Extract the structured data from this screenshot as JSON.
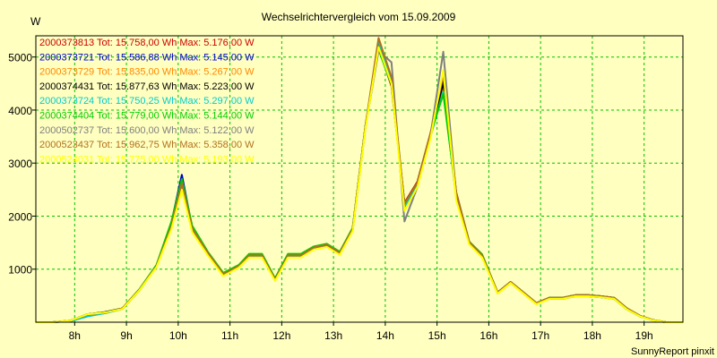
{
  "chart_data": {
    "type": "line",
    "title": "Wechselrichtervergleich vom 15.09.2009",
    "ylabel": "W",
    "xlabel": "",
    "footer": "SunnyReport pinxit",
    "ylim": [
      0,
      5400
    ],
    "xlim": [
      7.25,
      19.75
    ],
    "y_ticks": [
      1000,
      2000,
      3000,
      4000,
      5000
    ],
    "x_ticks": [
      {
        "value": 8,
        "label": "8h"
      },
      {
        "value": 9,
        "label": "9h"
      },
      {
        "value": 10,
        "label": "10h"
      },
      {
        "value": 11,
        "label": "11h"
      },
      {
        "value": 12,
        "label": "12h"
      },
      {
        "value": 13,
        "label": "13h"
      },
      {
        "value": 14,
        "label": "14h"
      },
      {
        "value": 15,
        "label": "15h"
      },
      {
        "value": 16,
        "label": "16h"
      },
      {
        "value": 17,
        "label": "17h"
      },
      {
        "value": 18,
        "label": "18h"
      },
      {
        "value": 19,
        "label": "19h"
      }
    ],
    "grid": true,
    "x": [
      7.25,
      7.58,
      7.92,
      8.25,
      8.58,
      8.92,
      9.25,
      9.58,
      9.87,
      10.07,
      10.27,
      10.57,
      10.87,
      11.17,
      11.37,
      11.62,
      11.87,
      12.12,
      12.37,
      12.62,
      12.87,
      13.12,
      13.37,
      13.62,
      13.87,
      14.12,
      14.37,
      14.62,
      14.87,
      15.12,
      15.37,
      15.62,
      15.87,
      16.17,
      16.42,
      16.67,
      16.92,
      17.17,
      17.42,
      17.67,
      17.92,
      18.17,
      18.42,
      18.67,
      18.92,
      19.17,
      19.42,
      19.75
    ],
    "base_curve": [
      0,
      0,
      30,
      150,
      180,
      250,
      600,
      1050,
      1800,
      2600,
      1750,
      1300,
      900,
      1050,
      1250,
      1250,
      800,
      1250,
      1250,
      1400,
      1450,
      1300,
      1750,
      3700,
      5300,
      4600,
      2200,
      2600,
      3500,
      4500,
      2400,
      1500,
      1250,
      550,
      750,
      550,
      350,
      450,
      450,
      500,
      500,
      480,
      450,
      250,
      120,
      40,
      0,
      0
    ],
    "series": [
      {
        "name": "2000373813",
        "text": "2000373813 Tot: 15.758,00 Wh Max: 5.176,00 W",
        "total_wh": 15758.0,
        "max_w": 5176.0,
        "color": "#cc0000",
        "values": [
          0,
          0,
          30,
          150,
          180,
          260,
          620,
          1070,
          1850,
          2700,
          1800,
          1320,
          920,
          1070,
          1280,
          1270,
          820,
          1270,
          1270,
          1420,
          1470,
          1320,
          1770,
          3720,
          5180,
          4450,
          2250,
          2650,
          3550,
          4600,
          2450,
          1520,
          1270,
          560,
          760,
          560,
          360,
          460,
          460,
          510,
          510,
          490,
          460,
          260,
          120,
          40,
          0,
          0
        ]
      },
      {
        "name": "2000373721",
        "text": "2000373721 Tot: 15.586,88 Wh Max: 5.145,00 W",
        "total_wh": 15586.88,
        "max_w": 5145.0,
        "color": "#0000cc",
        "values": [
          0,
          0,
          20,
          120,
          170,
          250,
          600,
          1060,
          1880,
          2780,
          1780,
          1300,
          900,
          1050,
          1250,
          1250,
          800,
          1250,
          1250,
          1400,
          1450,
          1300,
          1750,
          3700,
          5150,
          4500,
          2200,
          2600,
          3500,
          4450,
          2400,
          1500,
          1250,
          550,
          750,
          550,
          350,
          440,
          440,
          490,
          490,
          470,
          440,
          240,
          110,
          35,
          0,
          0
        ]
      },
      {
        "name": "2000373729",
        "text": "2000373729 Tot: 15.835,00 Wh Max: 5.267,00 W",
        "total_wh": 15835.0,
        "max_w": 5267.0,
        "color": "#ff8800",
        "values": [
          0,
          0,
          30,
          150,
          180,
          250,
          600,
          1050,
          1780,
          2550,
          1720,
          1280,
          880,
          1040,
          1230,
          1230,
          790,
          1230,
          1230,
          1380,
          1430,
          1280,
          1730,
          3680,
          5270,
          4580,
          2150,
          2580,
          3480,
          4400,
          2350,
          1480,
          1230,
          540,
          740,
          540,
          340,
          450,
          450,
          500,
          500,
          480,
          450,
          250,
          120,
          40,
          0,
          0
        ]
      },
      {
        "name": "2000374431",
        "text": "2000374431 Tot: 15.877,63 Wh Max: 5.223,00 W",
        "total_wh": 15877.63,
        "max_w": 5223.0,
        "color": "#000000",
        "values": [
          0,
          0,
          30,
          150,
          190,
          260,
          610,
          1060,
          1810,
          2620,
          1760,
          1310,
          910,
          1060,
          1260,
          1260,
          810,
          1260,
          1260,
          1410,
          1460,
          1310,
          1760,
          3710,
          5220,
          4520,
          2220,
          2620,
          3520,
          4520,
          2420,
          1510,
          1260,
          560,
          760,
          560,
          360,
          460,
          460,
          510,
          510,
          490,
          460,
          260,
          120,
          40,
          0,
          0
        ]
      },
      {
        "name": "2000373724",
        "text": "2000373724 Tot: 15.750,25 Wh Max: 5.297,00 W",
        "total_wh": 15750.25,
        "max_w": 5297.0,
        "color": "#00cccc",
        "values": [
          0,
          0,
          20,
          110,
          170,
          250,
          600,
          1050,
          1790,
          2580,
          1740,
          1290,
          890,
          1040,
          1240,
          1240,
          790,
          1240,
          1240,
          1390,
          1440,
          1290,
          1740,
          3690,
          5300,
          4560,
          2180,
          2590,
          3490,
          4350,
          2380,
          1490,
          1240,
          550,
          750,
          550,
          350,
          440,
          440,
          490,
          490,
          470,
          440,
          240,
          110,
          35,
          0,
          0
        ]
      },
      {
        "name": "2000374404",
        "text": "2000374404 Tot: 15.779,00 Wh Max: 5.144,00 W",
        "total_wh": 15779.0,
        "max_w": 5144.0,
        "color": "#00cc00",
        "values": [
          0,
          0,
          30,
          150,
          180,
          260,
          620,
          1080,
          1900,
          2700,
          1820,
          1330,
          930,
          1080,
          1290,
          1290,
          830,
          1290,
          1290,
          1430,
          1480,
          1330,
          1780,
          3720,
          5140,
          4480,
          2230,
          2630,
          3530,
          4300,
          2430,
          1520,
          1280,
          560,
          760,
          560,
          360,
          460,
          460,
          510,
          510,
          490,
          460,
          260,
          120,
          40,
          0,
          0
        ]
      },
      {
        "name": "2000502737",
        "text": "2000502737 Tot: 15.600,00 Wh Max: 5.122,00 W",
        "total_wh": 15600.0,
        "max_w": 5122.0,
        "color": "#808080",
        "values": [
          0,
          0,
          30,
          140,
          180,
          250,
          600,
          1050,
          1800,
          2600,
          1750,
          1300,
          900,
          1050,
          1250,
          1250,
          800,
          1250,
          1250,
          1400,
          1450,
          1300,
          1750,
          3700,
          5120,
          4900,
          1900,
          2550,
          3500,
          5100,
          2400,
          1500,
          1250,
          550,
          750,
          550,
          350,
          450,
          450,
          500,
          500,
          480,
          450,
          250,
          120,
          40,
          0,
          0
        ]
      },
      {
        "name": "2000523437",
        "text": "2000523437 Tot: 15.962,75 Wh Max: 5.358,00 W",
        "total_wh": 15962.75,
        "max_w": 5358.0,
        "color": "#b07020",
        "values": [
          0,
          0,
          30,
          150,
          180,
          260,
          610,
          1060,
          1820,
          2620,
          1770,
          1310,
          910,
          1060,
          1260,
          1260,
          810,
          1260,
          1260,
          1410,
          1460,
          1310,
          1760,
          3720,
          5360,
          4620,
          2230,
          2630,
          3530,
          4650,
          2430,
          1510,
          1260,
          560,
          760,
          560,
          360,
          460,
          460,
          510,
          510,
          490,
          460,
          260,
          120,
          40,
          0,
          0
        ]
      },
      {
        "name": "2000524031",
        "text": "2000524031 Tot: 15.775,00 Wh Max: 5.193,00 W",
        "total_wh": 15775.0,
        "max_w": 5193.0,
        "color": "#ffff00",
        "values": [
          0,
          0,
          30,
          150,
          180,
          250,
          600,
          1040,
          1760,
          2500,
          1700,
          1260,
          870,
          1030,
          1220,
          1220,
          780,
          1220,
          1220,
          1370,
          1420,
          1270,
          1720,
          3670,
          5190,
          4500,
          2100,
          2550,
          3450,
          4750,
          2300,
          1470,
          1220,
          540,
          740,
          540,
          340,
          440,
          440,
          490,
          490,
          470,
          440,
          240,
          110,
          35,
          0,
          0
        ]
      }
    ]
  }
}
